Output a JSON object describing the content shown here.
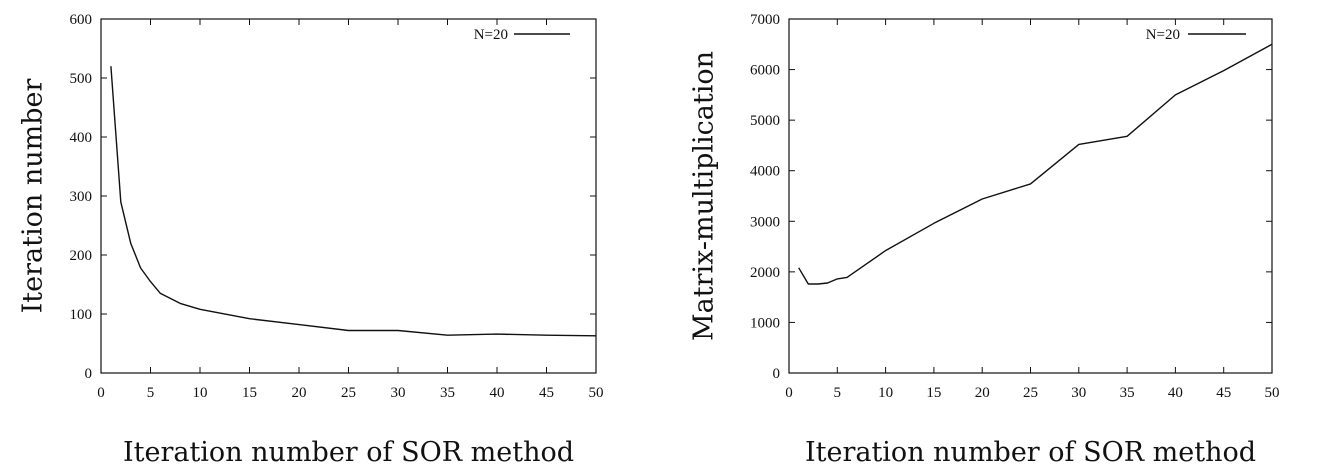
{
  "chart_data": [
    {
      "type": "line",
      "xlabel": "Iteration number of SOR method",
      "ylabel": "Iteration number",
      "xlim": [
        0,
        50
      ],
      "ylim": [
        0,
        600
      ],
      "x_ticks": [
        0,
        5,
        10,
        15,
        20,
        25,
        30,
        35,
        40,
        45,
        50
      ],
      "y_ticks": [
        0,
        100,
        200,
        300,
        400,
        500,
        600
      ],
      "grid": false,
      "legend_position": "top-right",
      "series": [
        {
          "name": "N=20",
          "color": "#111111",
          "x": [
            1,
            2,
            3,
            4,
            5,
            6,
            8,
            10,
            15,
            20,
            25,
            30,
            35,
            40,
            45,
            50
          ],
          "y": [
            520,
            290,
            220,
            178,
            155,
            135,
            118,
            108,
            92,
            82,
            72,
            72,
            64,
            66,
            64,
            63
          ]
        }
      ]
    },
    {
      "type": "line",
      "xlabel": "Iteration number of SOR method",
      "ylabel": "Matrix-multiplication",
      "xlim": [
        0,
        50
      ],
      "ylim": [
        0,
        7000
      ],
      "x_ticks": [
        0,
        5,
        10,
        15,
        20,
        25,
        30,
        35,
        40,
        45,
        50
      ],
      "y_ticks": [
        0,
        1000,
        2000,
        3000,
        4000,
        5000,
        6000,
        7000
      ],
      "grid": false,
      "legend_position": "top-right",
      "series": [
        {
          "name": "N=20",
          "color": "#111111",
          "x": [
            1,
            2,
            3,
            4,
            5,
            6,
            10,
            15,
            20,
            25,
            30,
            35,
            40,
            45,
            50
          ],
          "y": [
            2080,
            1760,
            1760,
            1780,
            1860,
            1890,
            2420,
            2960,
            3440,
            3740,
            4520,
            4680,
            5500,
            5980,
            6500
          ]
        }
      ]
    }
  ]
}
